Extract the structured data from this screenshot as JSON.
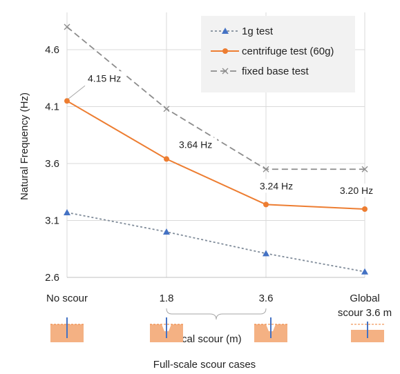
{
  "chart_data": {
    "type": "line",
    "ylabel": "Natural Frequency (Hz)",
    "ylim": [
      2.6,
      4.9
    ],
    "yticks": [
      "2.6",
      "3.1",
      "3.6",
      "4.1",
      "4.6"
    ],
    "categories": [
      "No scour",
      "1.8",
      "3.6",
      "Global scour 3.6 m"
    ],
    "category_lines": [
      [
        "No scour"
      ],
      [
        "1.8"
      ],
      [
        "3.6"
      ],
      [
        "Global",
        "scour 3.6 m"
      ]
    ],
    "bracket_label": "Local scour (m)",
    "footer_label": "Full-scale scour cases",
    "grid": true,
    "legend_position": "top-right",
    "series": [
      {
        "name": "1g test",
        "values": [
          3.17,
          3.0,
          2.81,
          2.65
        ],
        "color": "#7f8b99",
        "marker": "triangle",
        "dash": "3,3",
        "marker_color": "#4472c4"
      },
      {
        "name": "centrifuge test (60g)",
        "values": [
          4.15,
          3.64,
          3.24,
          3.2
        ],
        "color": "#ed7d31",
        "marker": "circle",
        "dash": "",
        "marker_color": "#ed7d31"
      },
      {
        "name": "fixed base test",
        "values": [
          4.8,
          4.08,
          3.55,
          3.55
        ],
        "color": "#8c8c8c",
        "marker": "x",
        "dash": "9,5",
        "marker_color": "#8c8c8c"
      }
    ],
    "data_labels": [
      {
        "series": 1,
        "index": 0,
        "text": "4.15 Hz"
      },
      {
        "series": 1,
        "index": 1,
        "text": "3.64 Hz"
      },
      {
        "series": 1,
        "index": 2,
        "text": "3.24 Hz"
      },
      {
        "series": 1,
        "index": 3,
        "text": "3.20 Hz"
      }
    ],
    "scour_icons": [
      "no-scour",
      "local-scour",
      "local-scour",
      "global-scour"
    ]
  }
}
